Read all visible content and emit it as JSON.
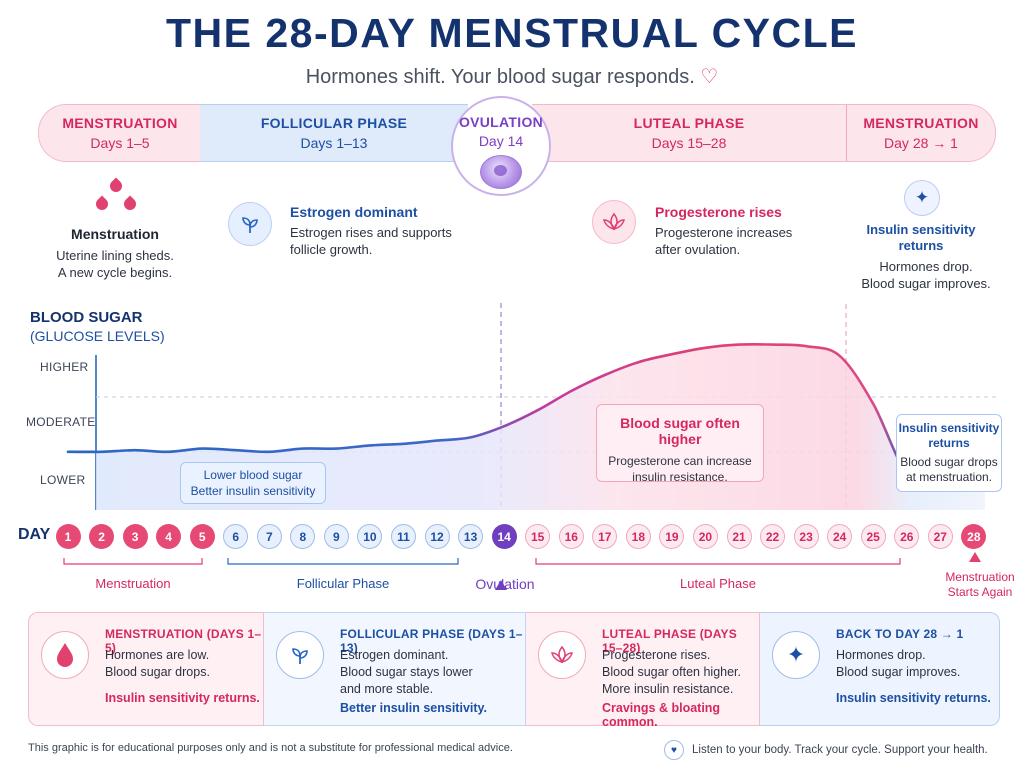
{
  "header": {
    "title": "THE 28-DAY MENSTRUAL CYCLE",
    "subtitle": "Hormones shift. Your blood sugar responds."
  },
  "phases": {
    "menstruation_start": {
      "title": "MENSTRUATION",
      "days": "Days 1–5"
    },
    "follicular": {
      "title": "FOLLICULAR PHASE",
      "days": "Days 1–13"
    },
    "ovulation": {
      "title": "OVULATION",
      "days": "Day 14"
    },
    "luteal": {
      "title": "LUTEAL PHASE",
      "days": "Days 15–28"
    },
    "menstruation_end": {
      "title": "MENSTRUATION",
      "days": "Day 28 → 1"
    }
  },
  "descriptions": {
    "menstruation": {
      "heading": "Menstruation",
      "line1": "Uterine lining sheds.",
      "line2": "A new cycle begins."
    },
    "estrogen": {
      "heading": "Estrogen dominant",
      "line1": "Estrogen rises and supports",
      "line2": "follicle growth."
    },
    "progesterone": {
      "heading": "Progesterone rises",
      "line1": "Progesterone increases",
      "line2": "after ovulation."
    },
    "insulin": {
      "heading_line1": "Insulin sensitivity",
      "heading_line2": "returns",
      "line1": "Hormones drop.",
      "line2": "Blood sugar improves."
    }
  },
  "blood_sugar": {
    "title": "BLOOD SUGAR",
    "subtitle": "(GLUCOSE LEVELS)",
    "levels": {
      "higher": "HIGHER",
      "moderate": "MODERATE",
      "lower": "LOWER"
    }
  },
  "chart_data": {
    "type": "area",
    "x": [
      1,
      2,
      3,
      4,
      5,
      6,
      7,
      8,
      9,
      10,
      11,
      12,
      13,
      14,
      15,
      16,
      17,
      18,
      19,
      20,
      21,
      22,
      23,
      24,
      25,
      26,
      27,
      28
    ],
    "series": [
      {
        "values": [
          0.22,
          0.22,
          0.23,
          0.22,
          0.24,
          0.23,
          0.22,
          0.24,
          0.24,
          0.26,
          0.27,
          0.29,
          0.31,
          0.38,
          0.48,
          0.6,
          0.7,
          0.78,
          0.83,
          0.87,
          0.89,
          0.89,
          0.88,
          0.82,
          0.52,
          0.09,
          0.05,
          0.05
        ]
      }
    ],
    "yticks": [
      "LOWER",
      "MODERATE",
      "HIGHER"
    ],
    "ylim": [
      0,
      1
    ],
    "xlim": [
      1,
      28
    ],
    "ylabel": "BLOOD SUGAR"
  },
  "notes": {
    "lower": {
      "line1": "Lower blood sugar",
      "line2": "Better insulin sensitivity"
    },
    "higher": {
      "heading": "Blood sugar often higher",
      "line1": "Progesterone can increase",
      "line2": "insulin resistance."
    },
    "insulin": {
      "heading_line1": "Insulin sensitivity",
      "heading_line2": "returns",
      "line1": "Blood sugar drops",
      "line2": "at menstruation."
    }
  },
  "day_row": {
    "label": "DAY",
    "days": [
      {
        "n": "1",
        "phase": "m"
      },
      {
        "n": "2",
        "phase": "m"
      },
      {
        "n": "3",
        "phase": "m"
      },
      {
        "n": "4",
        "phase": "m"
      },
      {
        "n": "5",
        "phase": "m"
      },
      {
        "n": "6",
        "phase": "f"
      },
      {
        "n": "7",
        "phase": "f"
      },
      {
        "n": "8",
        "phase": "f"
      },
      {
        "n": "9",
        "phase": "f"
      },
      {
        "n": "10",
        "phase": "f"
      },
      {
        "n": "11",
        "phase": "f"
      },
      {
        "n": "12",
        "phase": "f"
      },
      {
        "n": "13",
        "phase": "f"
      },
      {
        "n": "14",
        "phase": "o"
      },
      {
        "n": "15",
        "phase": "l"
      },
      {
        "n": "16",
        "phase": "l"
      },
      {
        "n": "17",
        "phase": "l"
      },
      {
        "n": "18",
        "phase": "l"
      },
      {
        "n": "19",
        "phase": "l"
      },
      {
        "n": "20",
        "phase": "l"
      },
      {
        "n": "21",
        "phase": "l"
      },
      {
        "n": "22",
        "phase": "l"
      },
      {
        "n": "23",
        "phase": "l"
      },
      {
        "n": "24",
        "phase": "l"
      },
      {
        "n": "25",
        "phase": "l"
      },
      {
        "n": "26",
        "phase": "l"
      },
      {
        "n": "27",
        "phase": "l"
      },
      {
        "n": "28",
        "phase": "e"
      }
    ],
    "ranges": {
      "menstruation": "Menstruation",
      "follicular": "Follicular Phase",
      "ovulation": "Ovulation",
      "luteal": "Luteal Phase",
      "end_line1": "Menstruation",
      "end_line2": "Starts Again"
    }
  },
  "cards": {
    "menstruation": {
      "heading": "MENSTRUATION (DAYS 1–5)",
      "line1": "Hormones are low.",
      "line2": "Blood sugar drops.",
      "footer": "Insulin sensitivity returns."
    },
    "follicular": {
      "heading": "FOLLICULAR PHASE (DAYS 1–13)",
      "line1": "Estrogen dominant.",
      "line2": "Blood sugar stays lower",
      "line3": "and more stable.",
      "footer": "Better insulin sensitivity."
    },
    "luteal": {
      "heading": "LUTEAL PHASE (DAYS 15–28)",
      "line1": "Progesterone rises.",
      "line2": "Blood sugar often higher.",
      "line3": "More insulin resistance.",
      "footer": "Cravings & bloating common."
    },
    "back": {
      "heading": "BACK TO DAY 28 → 1",
      "line1": "Hormones drop.",
      "line2": "Blood sugar improves.",
      "footer": "Insulin sensitivity returns."
    }
  },
  "footer": {
    "disclaimer": "This graphic is for educational purposes only and is not a substitute for professional medical advice.",
    "tagline": "Listen to your body. Track your cycle. Support your health."
  },
  "colors": {
    "navy": "#14336e",
    "pink": "#d4285e",
    "blue": "#1d4fa3",
    "purple": "#6f3fc0"
  }
}
